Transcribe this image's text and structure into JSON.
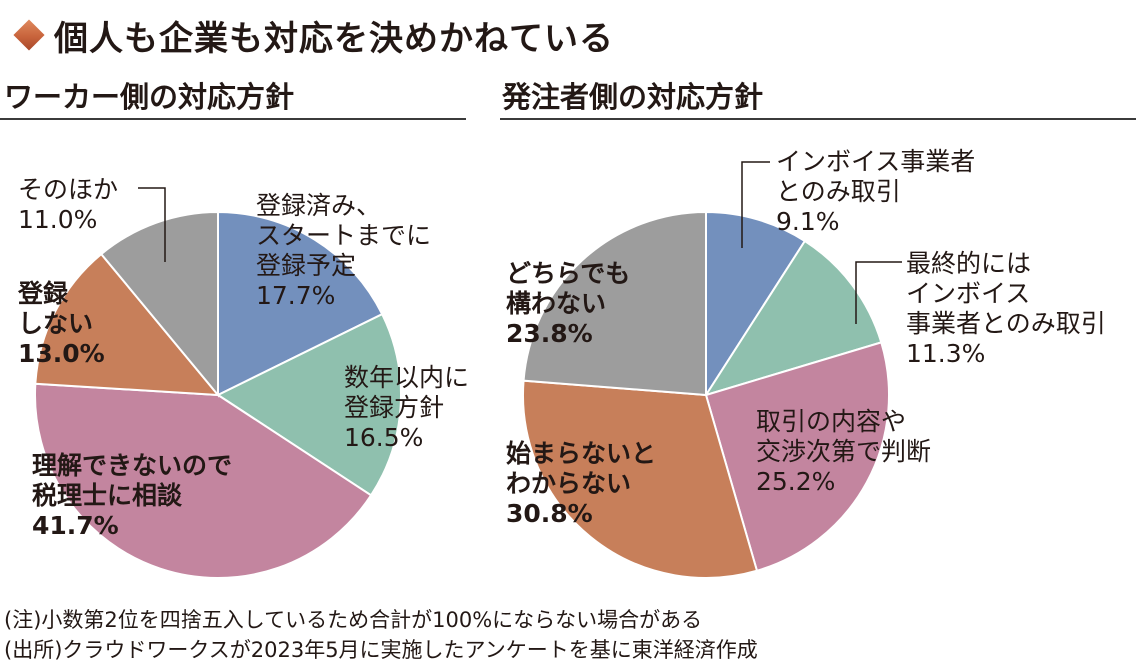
{
  "header": {
    "title": "個人も企業も対応を決めかねている"
  },
  "colors": {
    "blue": "#7390bd",
    "teal": "#8fc0ae",
    "pink": "#c3859f",
    "orange": "#c77f5a",
    "gray": "#9d9d9d",
    "accent": "#c8643c"
  },
  "chart_data": [
    {
      "type": "pie",
      "title": "ワーカー側の対応方針",
      "slices": [
        {
          "label": "登録済み、スタートまでに登録予定",
          "value": 17.7,
          "display": "17.7%",
          "color": "#7390bd",
          "bold": false
        },
        {
          "label": "数年以内に登録方針",
          "value": 16.5,
          "display": "16.5%",
          "color": "#8fc0ae",
          "bold": false
        },
        {
          "label": "理解できないので税理士に相談",
          "value": 41.7,
          "display": "41.7%",
          "color": "#c3859f",
          "bold": true
        },
        {
          "label": "登録しない",
          "value": 13.0,
          "display": "13.0%",
          "color": "#c77f5a",
          "bold": true
        },
        {
          "label": "そのほか",
          "value": 11.0,
          "display": "11.0%",
          "color": "#9d9d9d",
          "bold": false
        }
      ]
    },
    {
      "type": "pie",
      "title": "発注者側の対応方針",
      "slices": [
        {
          "label": "インボイス事業者とのみ取引",
          "value": 9.1,
          "display": "9.1%",
          "color": "#7390bd",
          "bold": false
        },
        {
          "label": "最終的にはインボイス事業者とのみ取引",
          "value": 11.3,
          "display": "11.3%",
          "color": "#8fc0ae",
          "bold": false
        },
        {
          "label": "取引の内容や交渉次第で判断",
          "value": 25.2,
          "display": "25.2%",
          "color": "#c3859f",
          "bold": false
        },
        {
          "label": "始まらないとわからない",
          "value": 30.8,
          "display": "30.8%",
          "color": "#c77f5a",
          "bold": true
        },
        {
          "label": "どちらでも構わない",
          "value": 23.8,
          "display": "23.8%",
          "color": "#9d9d9d",
          "bold": true
        }
      ]
    }
  ],
  "notes": {
    "note1": "(注)小数第2位を四捨五入しているため合計が100%にならない場合がある",
    "note2": "(出所)クラウドワークスが2023年5月に実施したアンケートを基に東洋経済作成"
  }
}
